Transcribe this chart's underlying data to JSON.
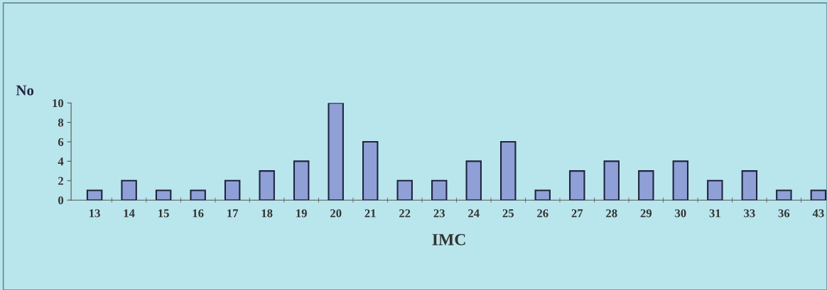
{
  "chart_data": {
    "type": "bar",
    "xlabel": "IMC",
    "ylabel": "No",
    "categories": [
      "13",
      "14",
      "15",
      "16",
      "17",
      "18",
      "19",
      "20",
      "21",
      "22",
      "23",
      "24",
      "25",
      "26",
      "27",
      "28",
      "29",
      "30",
      "31",
      "33",
      "36",
      "43"
    ],
    "values": [
      1,
      2,
      1,
      1,
      2,
      3,
      4,
      10,
      6,
      2,
      2,
      4,
      6,
      1,
      3,
      4,
      3,
      4,
      2,
      3,
      1,
      1
    ],
    "color": "#8fa0d6",
    "ylim": [
      0,
      10
    ],
    "yticks": [
      0,
      2,
      4,
      6,
      8,
      10
    ],
    "grid": false
  }
}
